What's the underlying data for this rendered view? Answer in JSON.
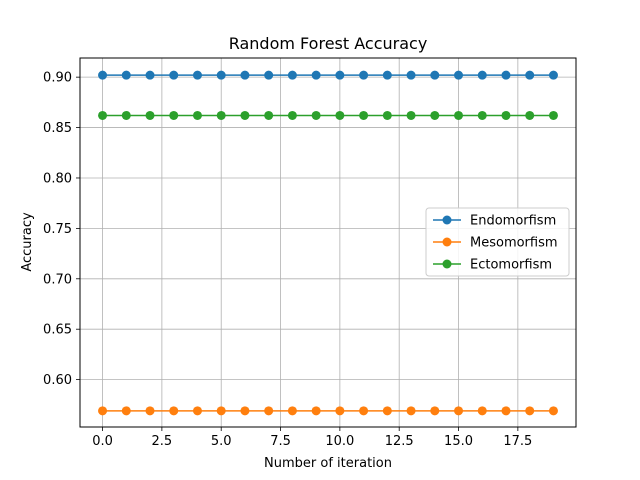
{
  "chart_data": {
    "type": "line",
    "title": "Random Forest Accuracy",
    "xlabel": "Number of iteration",
    "ylabel": "Accuracy",
    "x": [
      0,
      1,
      2,
      3,
      4,
      5,
      6,
      7,
      8,
      9,
      10,
      11,
      12,
      13,
      14,
      15,
      16,
      17,
      18,
      19
    ],
    "xlim": [
      -0.95,
      19.95
    ],
    "ylim": [
      0.553,
      0.919
    ],
    "xticks": [
      0.0,
      2.5,
      5.0,
      7.5,
      10.0,
      12.5,
      15.0,
      17.5
    ],
    "xtick_labels": [
      "0.0",
      "2.5",
      "5.0",
      "7.5",
      "10.0",
      "12.5",
      "15.0",
      "17.5"
    ],
    "yticks": [
      0.6,
      0.65,
      0.7,
      0.75,
      0.8,
      0.85,
      0.9
    ],
    "ytick_labels": [
      "0.60",
      "0.65",
      "0.70",
      "0.75",
      "0.80",
      "0.85",
      "0.90"
    ],
    "grid": true,
    "legend_position": "center-right",
    "series": [
      {
        "name": "Endomorfism",
        "color": "#1f77b4",
        "marker": "circle",
        "values": [
          0.902,
          0.902,
          0.902,
          0.902,
          0.902,
          0.902,
          0.902,
          0.902,
          0.902,
          0.902,
          0.902,
          0.902,
          0.902,
          0.902,
          0.902,
          0.902,
          0.902,
          0.902,
          0.902,
          0.902
        ]
      },
      {
        "name": "Mesomorfism",
        "color": "#ff7f0e",
        "marker": "circle",
        "values": [
          0.569,
          0.569,
          0.569,
          0.569,
          0.569,
          0.569,
          0.569,
          0.569,
          0.569,
          0.569,
          0.569,
          0.569,
          0.569,
          0.569,
          0.569,
          0.569,
          0.569,
          0.569,
          0.569,
          0.569
        ]
      },
      {
        "name": "Ectomorfism",
        "color": "#2ca02c",
        "marker": "circle",
        "values": [
          0.862,
          0.862,
          0.862,
          0.862,
          0.862,
          0.862,
          0.862,
          0.862,
          0.862,
          0.862,
          0.862,
          0.862,
          0.862,
          0.862,
          0.862,
          0.862,
          0.862,
          0.862,
          0.862,
          0.862
        ]
      }
    ]
  }
}
